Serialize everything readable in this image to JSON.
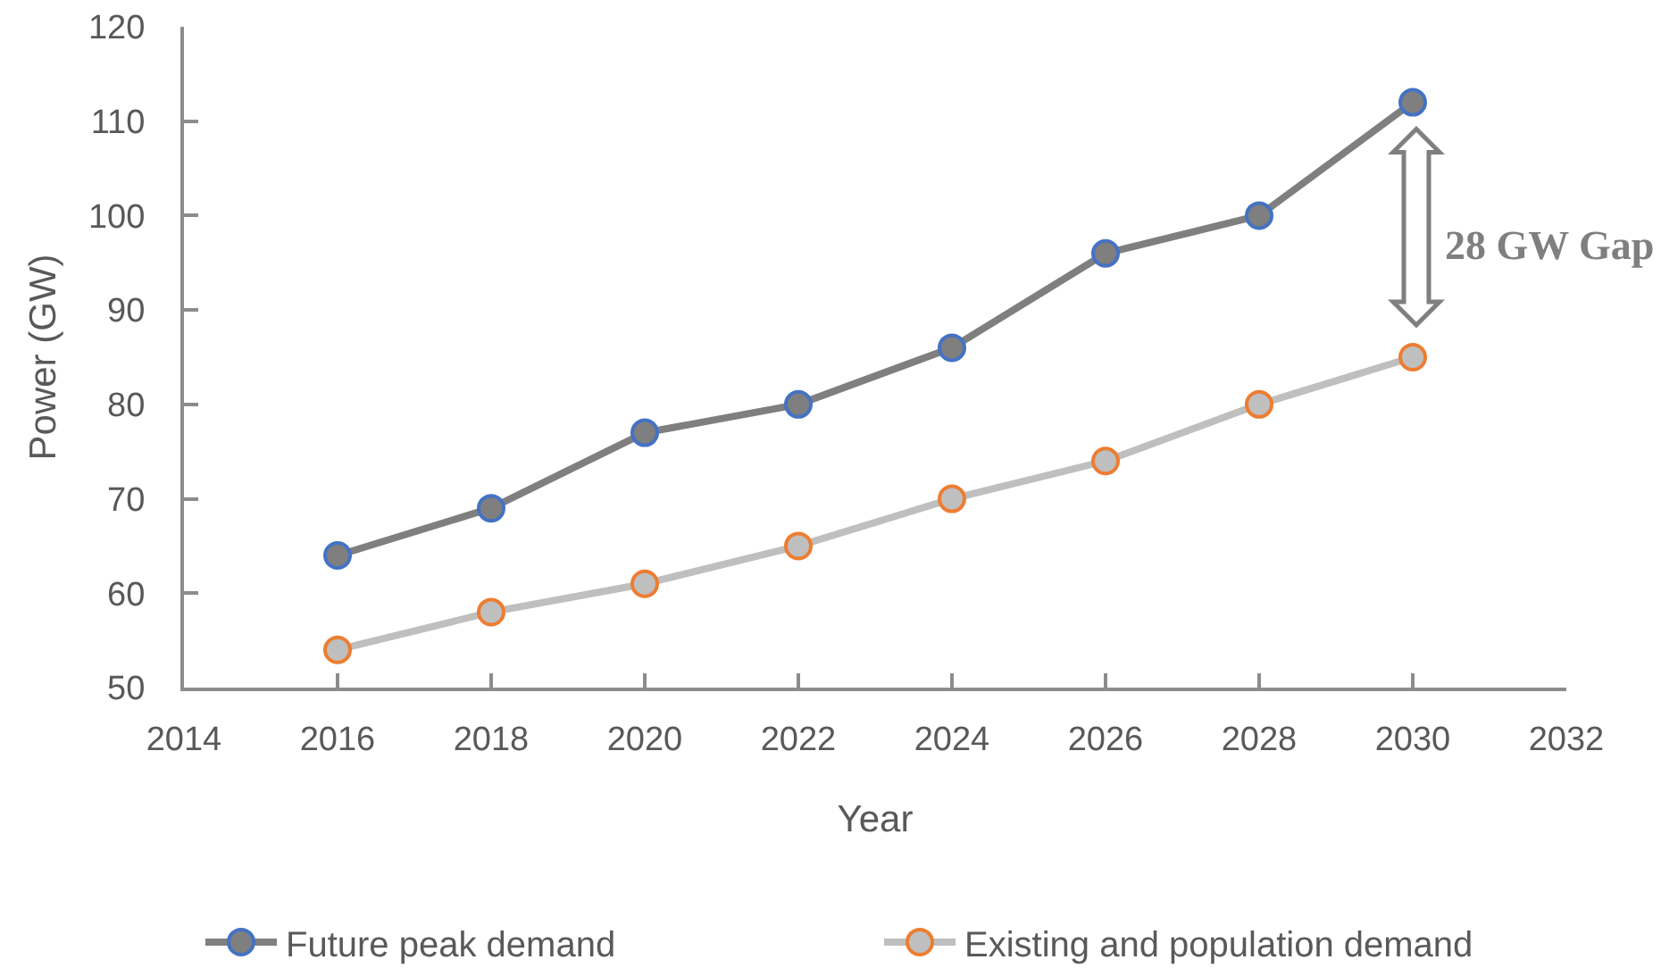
{
  "chart_data": {
    "type": "line",
    "xlabel": "Year",
    "ylabel": "Power (GW)",
    "x": [
      2016,
      2018,
      2020,
      2022,
      2024,
      2026,
      2028,
      2030
    ],
    "series": [
      {
        "name": "Future peak demand",
        "color": "#7f7f7f",
        "values": [
          64,
          69,
          77,
          80,
          86,
          96,
          100,
          112
        ]
      },
      {
        "name": "Existing and population demand",
        "color": "#bfbfbf",
        "values": [
          54,
          58,
          61,
          65,
          70,
          74,
          80,
          85
        ]
      }
    ],
    "xlim": [
      2014,
      2032
    ],
    "xticks": [
      2014,
      2016,
      2018,
      2020,
      2022,
      2024,
      2026,
      2028,
      2030,
      2032
    ],
    "ylim": [
      50,
      120
    ],
    "yticks": [
      50,
      60,
      70,
      80,
      90,
      100,
      110,
      120
    ],
    "annotations": [
      "28 GW Gap"
    ],
    "legend": "bottom",
    "marker": "circle",
    "line_style": "solid"
  }
}
